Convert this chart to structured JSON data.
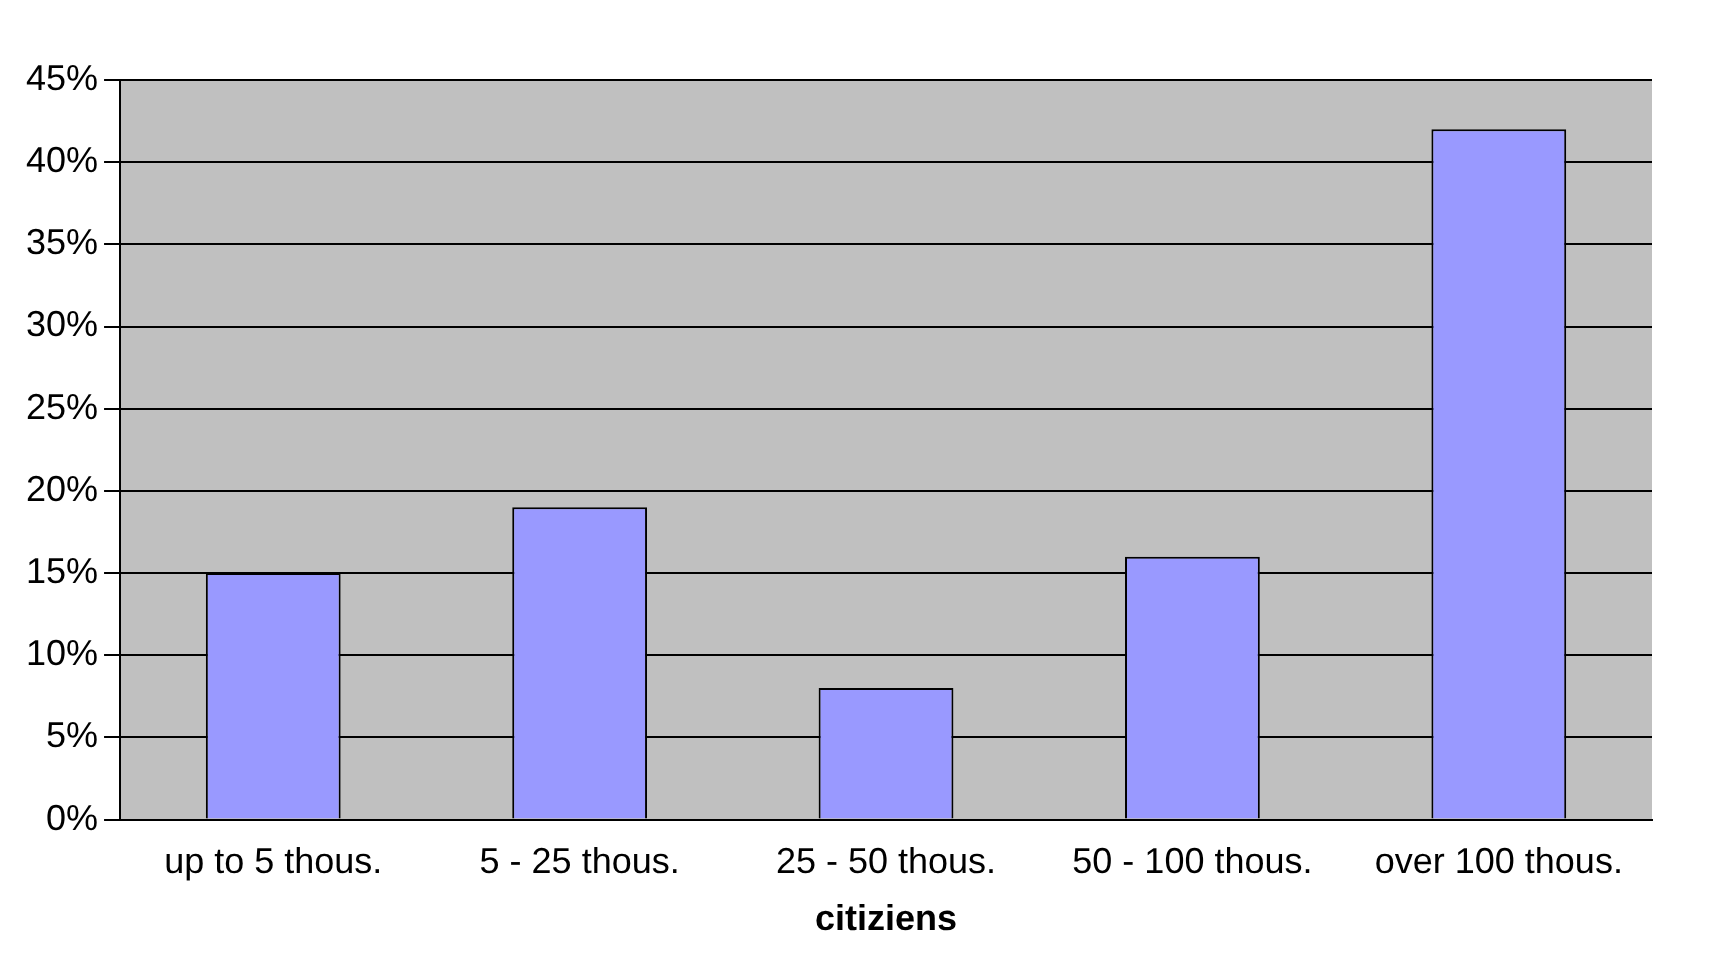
{
  "chart_data": {
    "type": "bar",
    "xlabel": "citiziens",
    "categories": [
      "up to 5 thous.",
      "5 - 25 thous.",
      "25 - 50 thous.",
      "50 - 100 thous.",
      "over 100 thous."
    ],
    "values": [
      15,
      19,
      8,
      16,
      42
    ],
    "color": "#9999ff",
    "ylim": [
      0,
      45
    ],
    "yticks": [
      {
        "value": 0,
        "label": "0%"
      },
      {
        "value": 5,
        "label": "5%"
      },
      {
        "value": 10,
        "label": "10%"
      },
      {
        "value": 15,
        "label": "15%"
      },
      {
        "value": 20,
        "label": "20%"
      },
      {
        "value": 25,
        "label": "25%"
      },
      {
        "value": 30,
        "label": "30%"
      },
      {
        "value": 35,
        "label": "35%"
      },
      {
        "value": 40,
        "label": "40%"
      },
      {
        "value": 45,
        "label": "45%"
      }
    ],
    "grid": "y",
    "legend": false
  }
}
